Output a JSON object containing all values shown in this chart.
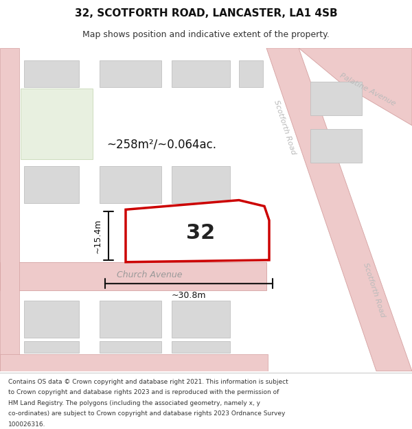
{
  "title": "32, SCOTFORTH ROAD, LANCASTER, LA1 4SB",
  "subtitle": "Map shows position and indicative extent of the property.",
  "footer_lines": [
    "Contains OS data © Crown copyright and database right 2021. This information is subject",
    "to Crown copyright and database rights 2023 and is reproduced with the permission of",
    "HM Land Registry. The polygons (including the associated geometry, namely x, y",
    "co-ordinates) are subject to Crown copyright and database rights 2023 Ordnance Survey",
    "100026316."
  ],
  "road_color": "#eecaca",
  "road_outline": "#d4a0a0",
  "building_fill": "#d8d8d8",
  "building_outline": "#c0c0c0",
  "green_fill": "#e8f0e0",
  "green_outline": "#c8d8b8",
  "highlight_fill": "#ffffff",
  "highlight_stroke": "#cc0000",
  "area_text": "~258m²/~0.064ac.",
  "house_number": "32",
  "dim_width": "~30.8m",
  "dim_height": "~15.4m",
  "road_label_scotforth_top": "Scotforth Road",
  "road_label_scotforth_bot": "Scotforth Road",
  "road_label_church": "Church Avenue",
  "road_label_palatine": "Palatine Avenue"
}
